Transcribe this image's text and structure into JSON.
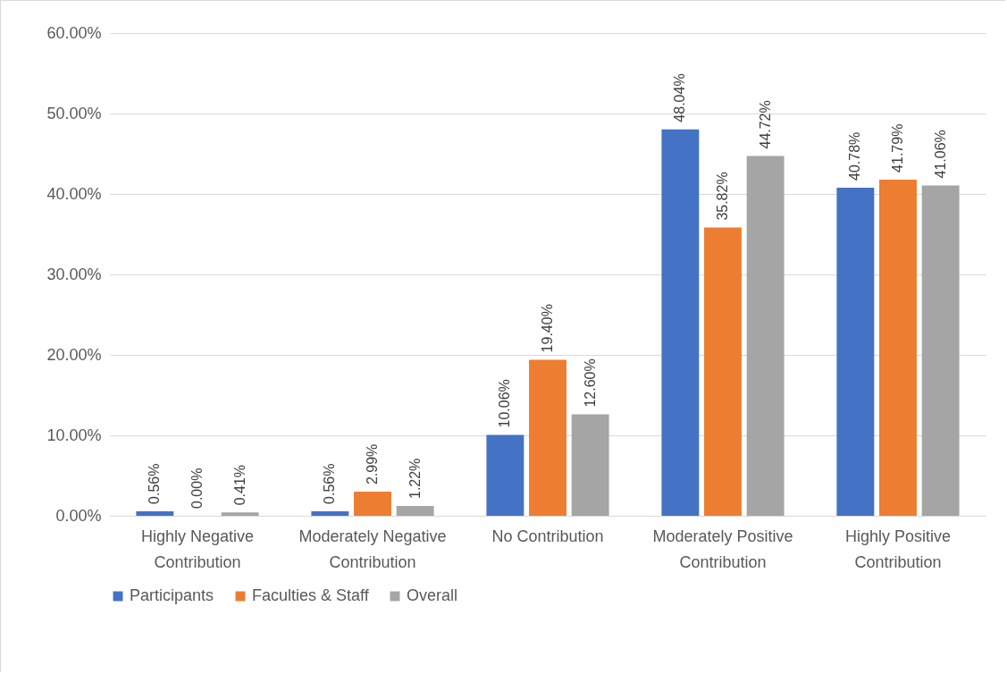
{
  "chart_data": {
    "type": "bar",
    "categories": [
      "Highly Negative Contribution",
      "Moderately Negative Contribution",
      "No Contribution",
      "Moderately Positive Contribution",
      "Highly Positive Contribution"
    ],
    "series": [
      {
        "name": "Participants",
        "color": "#4472c4",
        "values": [
          0.56,
          0.56,
          10.06,
          48.04,
          40.78
        ],
        "value_labels": [
          "0.56%",
          "0.56%",
          "10.06%",
          "48.04%",
          "40.78%"
        ]
      },
      {
        "name": "Faculties & Staff",
        "color": "#ed7d31",
        "values": [
          0.0,
          2.99,
          19.4,
          35.82,
          41.79
        ],
        "value_labels": [
          "0.00%",
          "2.99%",
          "19.40%",
          "35.82%",
          "41.79%"
        ]
      },
      {
        "name": "Overall",
        "color": "#a5a5a5",
        "values": [
          0.41,
          1.22,
          12.6,
          44.72,
          41.06
        ],
        "value_labels": [
          "0.41%",
          "1.22%",
          "12.60%",
          "44.72%",
          "41.06%"
        ]
      }
    ],
    "ylim": [
      0,
      60
    ],
    "yticks": [
      {
        "value": 0,
        "label": "0.00%"
      },
      {
        "value": 10,
        "label": "10.00%"
      },
      {
        "value": 20,
        "label": "20.00%"
      },
      {
        "value": 30,
        "label": "30.00%"
      },
      {
        "value": 40,
        "label": "40.00%"
      },
      {
        "value": 50,
        "label": "50.00%"
      },
      {
        "value": 60,
        "label": "60.00%"
      }
    ],
    "grid": "y",
    "legend": "bottom"
  }
}
